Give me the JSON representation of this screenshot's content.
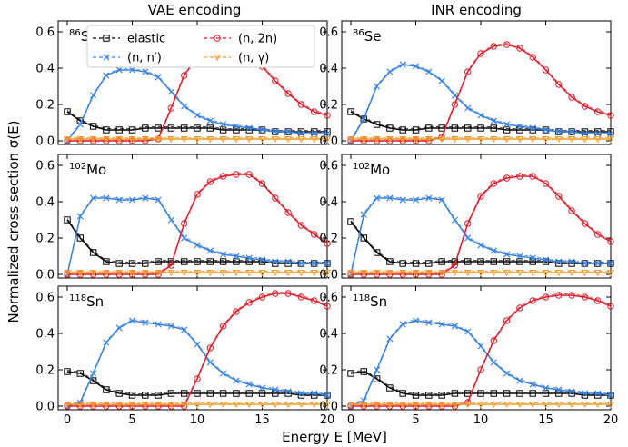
{
  "figure": {
    "col_titles": [
      "VAE encoding",
      "INR encoding"
    ],
    "xlabel": "Energy E [MeV]",
    "ylabel": "Normalized cross section σ(E)",
    "xticks": [
      0,
      5,
      10,
      15,
      20
    ],
    "yticks": [
      0.0,
      0.2,
      0.4,
      0.6
    ],
    "xlim": [
      -0.7,
      20
    ],
    "ylim": [
      -0.02,
      0.66
    ]
  },
  "legend": {
    "placement": "top, spanning upper-left panel",
    "entries": [
      {
        "key": "elastic",
        "label": "elastic",
        "color": "#000000",
        "marker": "square"
      },
      {
        "key": "nn",
        "label": "(n, n′)",
        "color": "#3b82e0",
        "marker": "x"
      },
      {
        "key": "n2n",
        "label": "(n, 2n)",
        "color": "#dc1f2e",
        "marker": "circle"
      },
      {
        "key": "ng",
        "label": "(n, γ)",
        "color": "#f39c2a",
        "marker": "triangle-down"
      }
    ]
  },
  "chart_data": [
    {
      "type": "line",
      "panel": "VAE encoding",
      "nucleus": {
        "mass": "86",
        "symbol": "Se"
      },
      "x": [
        0,
        1,
        2,
        3,
        4,
        5,
        6,
        7,
        8,
        9,
        10,
        11,
        12,
        13,
        14,
        15,
        16,
        17,
        18,
        19,
        20
      ],
      "series": [
        {
          "key": "elastic",
          "values": [
            0.16,
            0.11,
            0.08,
            0.06,
            0.06,
            0.06,
            0.07,
            0.07,
            0.07,
            0.07,
            0.07,
            0.07,
            0.06,
            0.06,
            0.06,
            0.06,
            0.05,
            0.05,
            0.05,
            0.05,
            0.05
          ]
        },
        {
          "key": "nn",
          "values": [
            0.0,
            0.09,
            0.25,
            0.36,
            0.39,
            0.39,
            0.38,
            0.35,
            0.27,
            0.19,
            0.14,
            0.11,
            0.09,
            0.08,
            0.07,
            0.06,
            0.05,
            0.05,
            0.04,
            0.04,
            0.04
          ]
        },
        {
          "key": "n2n",
          "values": [
            0.0,
            0.0,
            0.0,
            0.0,
            0.0,
            0.0,
            0.0,
            0.01,
            0.18,
            0.36,
            0.46,
            0.51,
            0.53,
            0.52,
            0.48,
            0.41,
            0.33,
            0.26,
            0.2,
            0.16,
            0.14
          ]
        },
        {
          "key": "ng",
          "values": [
            0.01,
            0.01,
            0.01,
            0.01,
            0.01,
            0.01,
            0.01,
            0.01,
            0.01,
            0.01,
            0.01,
            0.01,
            0.01,
            0.01,
            0.01,
            0.01,
            0.01,
            0.01,
            0.01,
            0.01,
            0.01
          ]
        }
      ]
    },
    {
      "type": "line",
      "panel": "INR encoding",
      "nucleus": {
        "mass": "86",
        "symbol": "Se"
      },
      "x": [
        0,
        1,
        2,
        3,
        4,
        5,
        6,
        7,
        8,
        9,
        10,
        11,
        12,
        13,
        14,
        15,
        16,
        17,
        18,
        19,
        20
      ],
      "series": [
        {
          "key": "elastic",
          "values": [
            0.16,
            0.12,
            0.09,
            0.07,
            0.06,
            0.06,
            0.07,
            0.07,
            0.07,
            0.07,
            0.07,
            0.07,
            0.06,
            0.06,
            0.06,
            0.06,
            0.05,
            0.05,
            0.05,
            0.05,
            0.05
          ]
        },
        {
          "key": "nn",
          "values": [
            0.0,
            0.12,
            0.3,
            0.38,
            0.42,
            0.41,
            0.38,
            0.33,
            0.25,
            0.18,
            0.14,
            0.11,
            0.09,
            0.08,
            0.07,
            0.06,
            0.05,
            0.05,
            0.04,
            0.04,
            0.04
          ]
        },
        {
          "key": "n2n",
          "values": [
            0.0,
            0.0,
            0.0,
            0.0,
            0.0,
            0.0,
            0.0,
            0.02,
            0.2,
            0.38,
            0.48,
            0.52,
            0.53,
            0.51,
            0.46,
            0.39,
            0.31,
            0.24,
            0.19,
            0.16,
            0.14
          ]
        },
        {
          "key": "ng",
          "values": [
            0.01,
            0.01,
            0.01,
            0.01,
            0.01,
            0.01,
            0.01,
            0.01,
            0.01,
            0.01,
            0.01,
            0.01,
            0.01,
            0.01,
            0.01,
            0.01,
            0.01,
            0.01,
            0.01,
            0.01,
            0.01
          ]
        }
      ]
    },
    {
      "type": "line",
      "panel": "VAE encoding",
      "nucleus": {
        "mass": "102",
        "symbol": "Mo"
      },
      "x": [
        0,
        1,
        2,
        3,
        4,
        5,
        6,
        7,
        8,
        9,
        10,
        11,
        12,
        13,
        14,
        15,
        16,
        17,
        18,
        19,
        20
      ],
      "series": [
        {
          "key": "elastic",
          "values": [
            0.3,
            0.2,
            0.12,
            0.07,
            0.06,
            0.06,
            0.06,
            0.07,
            0.07,
            0.07,
            0.07,
            0.07,
            0.07,
            0.07,
            0.07,
            0.07,
            0.06,
            0.06,
            0.06,
            0.06,
            0.06
          ]
        },
        {
          "key": "nn",
          "values": [
            0.0,
            0.32,
            0.42,
            0.42,
            0.41,
            0.41,
            0.42,
            0.41,
            0.3,
            0.2,
            0.16,
            0.13,
            0.11,
            0.1,
            0.09,
            0.08,
            0.07,
            0.07,
            0.06,
            0.06,
            0.06
          ]
        },
        {
          "key": "n2n",
          "values": [
            0.0,
            0.0,
            0.0,
            0.0,
            0.0,
            0.0,
            0.0,
            0.0,
            0.05,
            0.28,
            0.44,
            0.51,
            0.54,
            0.55,
            0.55,
            0.5,
            0.42,
            0.34,
            0.27,
            0.22,
            0.17
          ]
        },
        {
          "key": "ng",
          "values": [
            0.01,
            0.01,
            0.01,
            0.01,
            0.01,
            0.01,
            0.01,
            0.01,
            0.01,
            0.01,
            0.01,
            0.01,
            0.01,
            0.01,
            0.01,
            0.01,
            0.01,
            0.01,
            0.01,
            0.01,
            0.01
          ]
        }
      ]
    },
    {
      "type": "line",
      "panel": "INR encoding",
      "nucleus": {
        "mass": "102",
        "symbol": "Mo"
      },
      "x": [
        0,
        1,
        2,
        3,
        4,
        5,
        6,
        7,
        8,
        9,
        10,
        11,
        12,
        13,
        14,
        15,
        16,
        17,
        18,
        19,
        20
      ],
      "series": [
        {
          "key": "elastic",
          "values": [
            0.29,
            0.2,
            0.12,
            0.07,
            0.06,
            0.06,
            0.06,
            0.07,
            0.07,
            0.07,
            0.07,
            0.07,
            0.07,
            0.07,
            0.07,
            0.07,
            0.06,
            0.06,
            0.06,
            0.06,
            0.06
          ]
        },
        {
          "key": "nn",
          "values": [
            0.0,
            0.33,
            0.42,
            0.42,
            0.41,
            0.41,
            0.42,
            0.41,
            0.3,
            0.2,
            0.16,
            0.13,
            0.11,
            0.1,
            0.09,
            0.08,
            0.07,
            0.07,
            0.06,
            0.06,
            0.06
          ]
        },
        {
          "key": "n2n",
          "values": [
            0.0,
            0.0,
            0.0,
            0.0,
            0.0,
            0.0,
            0.0,
            0.0,
            0.05,
            0.28,
            0.43,
            0.5,
            0.53,
            0.54,
            0.54,
            0.5,
            0.43,
            0.35,
            0.28,
            0.22,
            0.18
          ]
        },
        {
          "key": "ng",
          "values": [
            0.01,
            0.01,
            0.01,
            0.01,
            0.01,
            0.01,
            0.01,
            0.01,
            0.01,
            0.01,
            0.01,
            0.01,
            0.01,
            0.01,
            0.01,
            0.01,
            0.01,
            0.01,
            0.01,
            0.01,
            0.01
          ]
        }
      ]
    },
    {
      "type": "line",
      "panel": "VAE encoding",
      "nucleus": {
        "mass": "118",
        "symbol": "Sn"
      },
      "x": [
        0,
        1,
        2,
        3,
        4,
        5,
        6,
        7,
        8,
        9,
        10,
        11,
        12,
        13,
        14,
        15,
        16,
        17,
        18,
        19,
        20
      ],
      "series": [
        {
          "key": "elastic",
          "values": [
            0.19,
            0.18,
            0.14,
            0.09,
            0.07,
            0.06,
            0.06,
            0.06,
            0.07,
            0.07,
            0.07,
            0.07,
            0.07,
            0.07,
            0.07,
            0.07,
            0.07,
            0.07,
            0.06,
            0.06,
            0.06
          ]
        },
        {
          "key": "nn",
          "values": [
            0.0,
            0.02,
            0.18,
            0.35,
            0.43,
            0.47,
            0.46,
            0.45,
            0.44,
            0.42,
            0.34,
            0.24,
            0.18,
            0.14,
            0.12,
            0.1,
            0.09,
            0.08,
            0.07,
            0.07,
            0.06
          ]
        },
        {
          "key": "n2n",
          "values": [
            0.0,
            0.0,
            0.0,
            0.0,
            0.0,
            0.0,
            0.0,
            0.0,
            0.0,
            0.0,
            0.15,
            0.32,
            0.44,
            0.52,
            0.57,
            0.6,
            0.62,
            0.62,
            0.6,
            0.58,
            0.55
          ]
        },
        {
          "key": "ng",
          "values": [
            0.01,
            0.01,
            0.01,
            0.01,
            0.01,
            0.01,
            0.01,
            0.01,
            0.01,
            0.01,
            0.01,
            0.01,
            0.01,
            0.01,
            0.01,
            0.01,
            0.01,
            0.01,
            0.01,
            0.01,
            0.01
          ]
        }
      ]
    },
    {
      "type": "line",
      "panel": "INR encoding",
      "nucleus": {
        "mass": "118",
        "symbol": "Sn"
      },
      "x": [
        0,
        1,
        2,
        3,
        4,
        5,
        6,
        7,
        8,
        9,
        10,
        11,
        12,
        13,
        14,
        15,
        16,
        17,
        18,
        19,
        20
      ],
      "series": [
        {
          "key": "elastic",
          "values": [
            0.18,
            0.19,
            0.15,
            0.1,
            0.07,
            0.06,
            0.06,
            0.06,
            0.07,
            0.07,
            0.07,
            0.07,
            0.07,
            0.07,
            0.07,
            0.07,
            0.07,
            0.07,
            0.06,
            0.06,
            0.06
          ]
        },
        {
          "key": "nn",
          "values": [
            0.0,
            0.03,
            0.2,
            0.37,
            0.45,
            0.47,
            0.46,
            0.45,
            0.44,
            0.41,
            0.33,
            0.24,
            0.18,
            0.14,
            0.12,
            0.1,
            0.09,
            0.08,
            0.07,
            0.07,
            0.06
          ]
        },
        {
          "key": "n2n",
          "values": [
            0.0,
            0.0,
            0.0,
            0.0,
            0.0,
            0.0,
            0.0,
            0.0,
            0.0,
            0.02,
            0.2,
            0.36,
            0.47,
            0.54,
            0.58,
            0.6,
            0.61,
            0.61,
            0.6,
            0.58,
            0.55
          ]
        },
        {
          "key": "ng",
          "values": [
            0.01,
            0.01,
            0.01,
            0.01,
            0.01,
            0.01,
            0.01,
            0.01,
            0.01,
            0.01,
            0.01,
            0.01,
            0.01,
            0.01,
            0.01,
            0.01,
            0.01,
            0.01,
            0.01,
            0.01,
            0.01
          ]
        }
      ]
    }
  ]
}
